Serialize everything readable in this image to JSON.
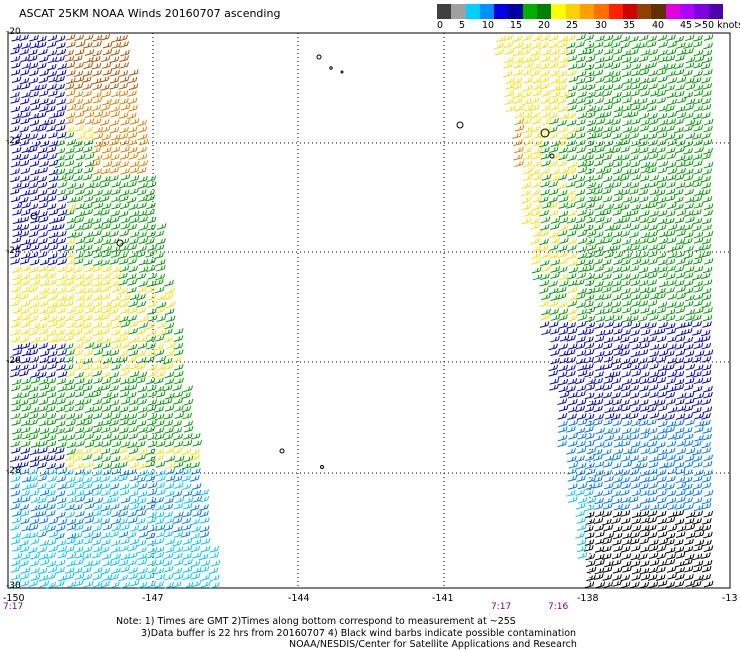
{
  "title": "ASCAT 25KM NOAA Winds 20160707 ascending",
  "legend": {
    "colors": [
      "#555555",
      "#a0a0a0",
      "#00c8ff",
      "#0078ff",
      "#0000c8",
      "#00a000",
      "#00d000",
      "#ffe000",
      "#ffa000",
      "#ff6000",
      "#ff0000",
      "#c00000",
      "#7a3a00",
      "#c060ff",
      "#ff00ff",
      "#9000ff",
      "#5000c0",
      "#202020",
      "#000000",
      "#ffffff"
    ],
    "ticks": [
      "0",
      "5",
      "10",
      "15",
      "20",
      "25",
      "30",
      "35",
      "40",
      "45",
      ">50 knots"
    ]
  },
  "lat_labels": [
    "-20",
    "-22",
    "-24",
    "-26",
    "-28",
    "-30"
  ],
  "lon_labels": [
    "-150",
    "-147",
    "-144",
    "-141",
    "-138",
    "-13"
  ],
  "times": [
    "7:17",
    "7:17",
    "7:16"
  ],
  "notes": {
    "line1": "Note: 1) Times are GMT 2)Times along bottom correspond to measurement at ~25S",
    "line2": "3)Data buffer is 22 hrs from 20160707 4) Black wind barbs indicate possible contamination",
    "line3": "NOAA/NESDIS/Center for Satellite Applications and Research"
  },
  "wind_color_classes": {
    "calm": "#000000",
    "cyan": "#00c8ff",
    "light_blue": "#0078ff",
    "blue": "#0000c8",
    "green": "#00a000",
    "yellow": "#ffe000",
    "orange": "#e08000",
    "brown": "#b05000"
  }
}
